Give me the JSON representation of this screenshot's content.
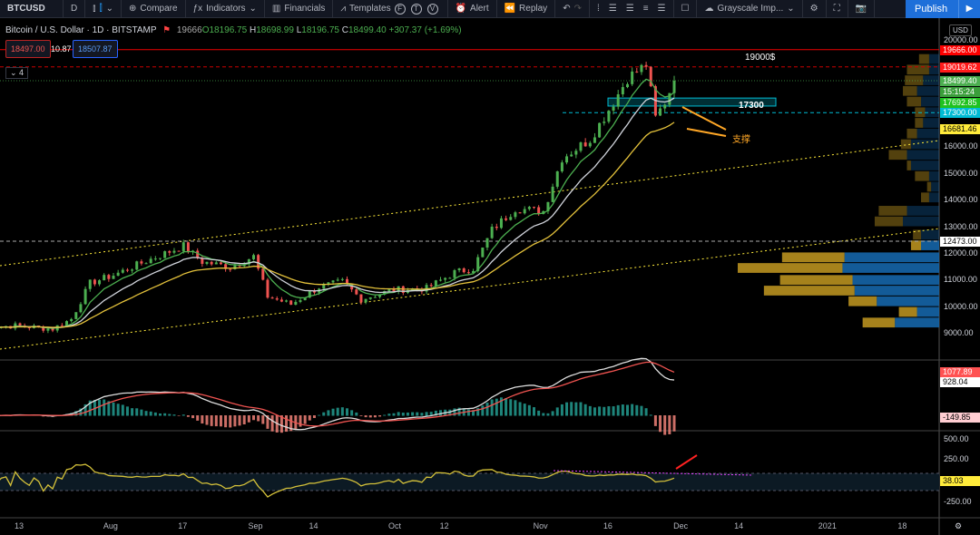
{
  "toolbar": {
    "symbol": "BTCUSD",
    "interval": "D",
    "compare": "Compare",
    "indicators": "Indicators",
    "financials": "Financials",
    "templates": "Templates",
    "circles": [
      "F",
      "T",
      "V"
    ],
    "alert": "Alert",
    "replay": "Replay",
    "layout": "Grayscale Imp...",
    "publish": "Publish"
  },
  "legend": {
    "title": "Bitcoin / U.S. Dollar · 1D · BITSTAMP",
    "overlap": "19666",
    "o": "O18196.75",
    "h_label": "H",
    "h": "18698.99",
    "l_label": "L",
    "l": "18196.75",
    "c_label": "C",
    "c": "18499.40",
    "change": "+307.37 (+1.69%)",
    "sell": "18497.00",
    "spread": "10.87",
    "buy": "18507.87",
    "collapse": "4"
  },
  "axis": {
    "currency": "USD",
    "price_ticks": [
      "20000.00",
      "16000.00",
      "15000.00",
      "14000.00",
      "13000.00",
      "12000.00",
      "11000.00",
      "10000.00",
      "9000.00"
    ],
    "price_tags": [
      {
        "value": "19666.00",
        "price": 19666,
        "color": "#ff0000"
      },
      {
        "value": "19019.62",
        "price": 19019.62,
        "color": "#ff1a1a"
      },
      {
        "value": "18499.40",
        "price": 18499.4,
        "color": "#4caf50"
      },
      {
        "value": "15:15:24",
        "price": 18080,
        "color": "#3a9e3a"
      },
      {
        "value": "17692.85",
        "price": 17692.85,
        "color": "#1fc21f"
      },
      {
        "value": "17300.00",
        "price": 17300,
        "color": "#00bcd4"
      },
      {
        "value": "16681.46",
        "price": 16681.46,
        "color": "#ffeb3b"
      },
      {
        "value": "12473.00",
        "price": 12473,
        "color": "#ffffff"
      }
    ],
    "macd_tags": [
      {
        "value": "1077.89",
        "color": "#ff5252"
      },
      {
        "value": "928.04",
        "color": "#ffffff"
      },
      {
        "value": "-149.85",
        "color": "#ffcdd2"
      }
    ],
    "osc_ticks": [
      "500.00",
      "250.00",
      "-250.00"
    ],
    "osc_tag": "38.03",
    "x_ticks": [
      {
        "label": "13",
        "date": "2020-07-13"
      },
      {
        "label": "Aug",
        "date": "2020-08-01"
      },
      {
        "label": "17",
        "date": "2020-08-17"
      },
      {
        "label": "Sep",
        "date": "2020-09-01"
      },
      {
        "label": "14",
        "date": "2020-09-14"
      },
      {
        "label": "Oct",
        "date": "2020-10-01"
      },
      {
        "label": "12",
        "date": "2020-10-12"
      },
      {
        "label": "Nov",
        "date": "2020-11-01"
      },
      {
        "label": "16",
        "date": "2020-11-16"
      },
      {
        "label": "Dec",
        "date": "2020-12-01"
      },
      {
        "label": "14",
        "date": "2020-12-14"
      },
      {
        "label": "2021",
        "date": "2021-01-01"
      },
      {
        "label": "18",
        "date": "2021-01-18"
      }
    ]
  },
  "annotations": {
    "level_19000": "19000$",
    "level_17300": "17300",
    "support": "支撑"
  },
  "colors": {
    "up": "#4caf50",
    "down": "#ef5350",
    "ema_fast": "#4caf50",
    "ma_mid": "#d1d4dc",
    "ma_slow": "#e3c13b",
    "channel": "#ffeb3b",
    "accent": "#1e6fd9"
  },
  "chart_data": {
    "type": "candlestick",
    "price_range": [
      8500,
      20300
    ],
    "closes": [
      [
        "2020-07-05",
        9250
      ],
      [
        "2020-07-12",
        9300
      ],
      [
        "2020-07-20",
        9180
      ],
      [
        "2020-07-24",
        9550
      ],
      [
        "2020-07-28",
        10900
      ],
      [
        "2020-08-02",
        11200
      ],
      [
        "2020-08-10",
        11800
      ],
      [
        "2020-08-17",
        12300
      ],
      [
        "2020-08-21",
        11700
      ],
      [
        "2020-08-27",
        11500
      ],
      [
        "2020-09-01",
        11900
      ],
      [
        "2020-09-04",
        10400
      ],
      [
        "2020-09-09",
        10100
      ],
      [
        "2020-09-15",
        10750
      ],
      [
        "2020-09-20",
        10950
      ],
      [
        "2020-09-24",
        10300
      ],
      [
        "2020-10-01",
        10650
      ],
      [
        "2020-10-08",
        10700
      ],
      [
        "2020-10-14",
        11300
      ],
      [
        "2020-10-18",
        11450
      ],
      [
        "2020-10-22",
        12900
      ],
      [
        "2020-10-27",
        13700
      ],
      [
        "2020-11-02",
        13600
      ],
      [
        "2020-11-06",
        15600
      ],
      [
        "2020-11-12",
        16300
      ],
      [
        "2020-11-17",
        17700
      ],
      [
        "2020-11-20",
        18600
      ],
      [
        "2020-11-24",
        19100
      ],
      [
        "2020-11-26",
        17100
      ],
      [
        "2020-11-28",
        17700
      ],
      [
        "2020-11-30",
        18499.4
      ]
    ],
    "horizontal_levels": [
      19666,
      19019.62,
      18499.4,
      17300,
      12473
    ],
    "zone": [
      17550,
      17850
    ],
    "volume_profile": [
      [
        19300,
        0.05,
        0.05
      ],
      [
        18900,
        0.11,
        0.05
      ],
      [
        18500,
        0.09,
        0.08
      ],
      [
        18100,
        0.07,
        0.11
      ],
      [
        17700,
        0.07,
        0.09
      ],
      [
        17300,
        0.05,
        0.07
      ],
      [
        16900,
        0.04,
        0.08
      ],
      [
        16500,
        0.05,
        0.11
      ],
      [
        16100,
        0.05,
        0.14
      ],
      [
        15700,
        0.09,
        0.16
      ],
      [
        15300,
        0.02,
        0.14
      ],
      [
        14900,
        0.07,
        0.05
      ],
      [
        14500,
        0.02,
        0.04
      ],
      [
        14100,
        0.04,
        0.05
      ],
      [
        13600,
        0.14,
        0.16
      ],
      [
        13200,
        0.14,
        0.18
      ],
      [
        12700,
        0.04,
        0.09
      ],
      [
        12300,
        0.05,
        0.09
      ],
      [
        11850,
        0.31,
        0.47
      ],
      [
        11450,
        0.52,
        0.48
      ],
      [
        11000,
        0.36,
        0.43
      ],
      [
        10600,
        0.45,
        0.42
      ],
      [
        10200,
        0.14,
        0.31
      ],
      [
        9800,
        0.09,
        0.11
      ],
      [
        9400,
        0.16,
        0.22
      ]
    ]
  }
}
